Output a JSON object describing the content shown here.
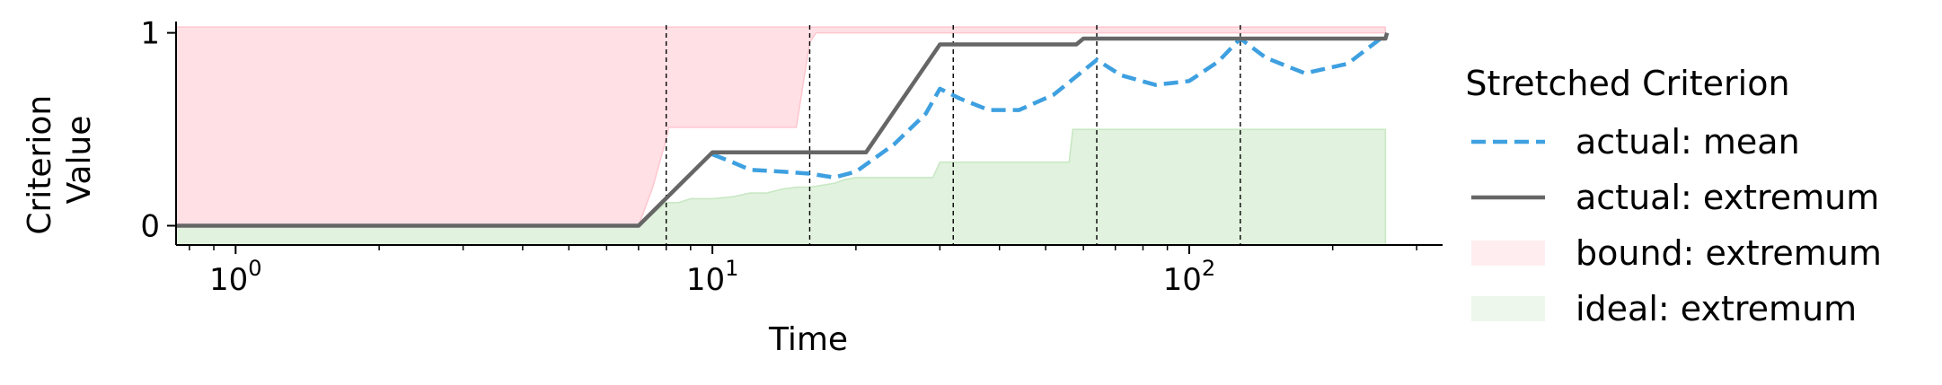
{
  "chart_data": {
    "type": "line",
    "xscale": "log",
    "xlabel": "Time",
    "ylabel_lines": [
      "Criterion",
      "Value"
    ],
    "xlim": [
      0.75,
      340
    ],
    "ylim": [
      -0.1,
      1.04
    ],
    "x_ticks": [
      {
        "value": 1,
        "base": "10",
        "exp": "0"
      },
      {
        "value": 10,
        "base": "10",
        "exp": "1"
      },
      {
        "value": 100,
        "base": "10",
        "exp": "2"
      }
    ],
    "y_ticks": [
      {
        "value": 0,
        "label": "0"
      },
      {
        "value": 1,
        "label": "1"
      }
    ],
    "vlines": [
      8,
      16,
      32,
      64,
      128
    ],
    "series": [
      {
        "name": "actual: mean",
        "style": "dashed",
        "color": "#3ea0e0",
        "points": [
          [
            10,
            0.37
          ],
          [
            11,
            0.33
          ],
          [
            12,
            0.29
          ],
          [
            14,
            0.28
          ],
          [
            16,
            0.27
          ],
          [
            18,
            0.25
          ],
          [
            20,
            0.28
          ],
          [
            24,
            0.42
          ],
          [
            28,
            0.58
          ],
          [
            30,
            0.71
          ],
          [
            33,
            0.66
          ],
          [
            38,
            0.6
          ],
          [
            44,
            0.6
          ],
          [
            52,
            0.68
          ],
          [
            64,
            0.86
          ],
          [
            72,
            0.78
          ],
          [
            85,
            0.73
          ],
          [
            100,
            0.75
          ],
          [
            115,
            0.85
          ],
          [
            128,
            0.97
          ],
          [
            145,
            0.87
          ],
          [
            175,
            0.79
          ],
          [
            215,
            0.84
          ],
          [
            255,
            0.98
          ]
        ]
      },
      {
        "name": "actual: extremum",
        "style": "solid",
        "color": "#666666",
        "points": [
          [
            0.75,
            0
          ],
          [
            7,
            0
          ],
          [
            10,
            0.38
          ],
          [
            21,
            0.38
          ],
          [
            30,
            0.94
          ],
          [
            58,
            0.94
          ],
          [
            60,
            0.97
          ],
          [
            258,
            0.97
          ],
          [
            260,
            1.0
          ]
        ]
      },
      {
        "name": "bound: extremum",
        "style": "fill",
        "color": "#ffb6c1",
        "upper": [
          [
            0.75,
            1.03
          ],
          [
            258,
            1.03
          ]
        ],
        "lower": [
          [
            0.75,
            0
          ],
          [
            7,
            0
          ],
          [
            7.5,
            0.2
          ],
          [
            8,
            0.45
          ],
          [
            8.1,
            0.51
          ],
          [
            15,
            0.51
          ],
          [
            16,
            0.95
          ],
          [
            16.5,
            1.0
          ],
          [
            258,
            1.0
          ]
        ]
      },
      {
        "name": "ideal: extremum",
        "style": "fill",
        "color": "#b7dfb0",
        "upper": [
          [
            0.75,
            0
          ],
          [
            7,
            0
          ],
          [
            8,
            0.12
          ],
          [
            8.5,
            0.12
          ],
          [
            9,
            0.14
          ],
          [
            10,
            0.14
          ],
          [
            11,
            0.15
          ],
          [
            12,
            0.17
          ],
          [
            13,
            0.17
          ],
          [
            14,
            0.19
          ],
          [
            15,
            0.2
          ],
          [
            16,
            0.2
          ],
          [
            17,
            0.21
          ],
          [
            18,
            0.22
          ],
          [
            19,
            0.24
          ],
          [
            20,
            0.25
          ],
          [
            29,
            0.25
          ],
          [
            30,
            0.33
          ],
          [
            56,
            0.33
          ],
          [
            57,
            0.5
          ],
          [
            258,
            0.5
          ]
        ],
        "lower": [
          [
            0.75,
            -0.1
          ],
          [
            258,
            -0.1
          ]
        ]
      }
    ],
    "legend": {
      "title": "Stretched Criterion",
      "position": "right",
      "entries": [
        {
          "label": "actual: mean",
          "kind": "dashed",
          "color": "#3ea0e0"
        },
        {
          "label": "actual: extremum",
          "kind": "solid",
          "color": "#666666"
        },
        {
          "label": "bound: extremum",
          "kind": "patch",
          "color": "#ffb6c1"
        },
        {
          "label": "ideal: extremum",
          "kind": "patch",
          "color": "#b7dfb0"
        }
      ]
    }
  }
}
